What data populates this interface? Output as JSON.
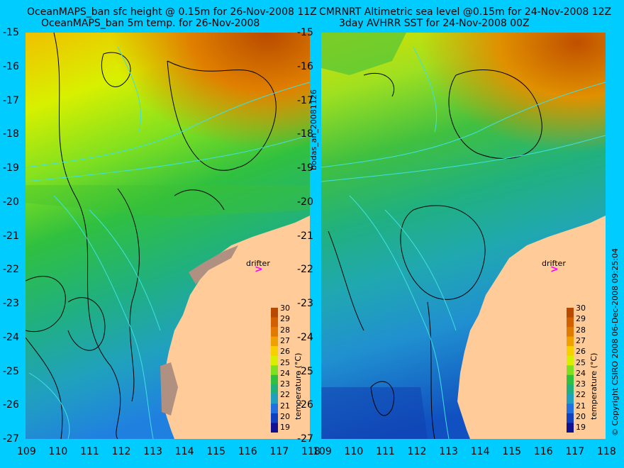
{
  "left_panel": {
    "title_line1": "OceanMAPS_ban sfc height @ 0.15m for 26-Nov-2008 11Z",
    "title_line2": "OceanMAPS_ban 5m temp. for 26-Nov-2008",
    "drifter_label": "drifter",
    "drifter_marker": ">"
  },
  "right_panel": {
    "title_line1": "CMRNRT Altimetric sea level  @0.15m  for 24-Nov-2008 12Z",
    "title_line2": "3day AVHRR SST for 24-Nov-2008 00Z",
    "drifter_label": "drifter",
    "drifter_marker": ">"
  },
  "side_label": "bodas_an_20081126",
  "copyright": "© Copyright CSIRO 2008   06-Dec-2008 09:25:04",
  "y_ticks": [
    "-15",
    "-16",
    "-17",
    "-18",
    "-19",
    "-20",
    "-21",
    "-22",
    "-23",
    "-24",
    "-25",
    "-26",
    "-27"
  ],
  "x_ticks": [
    "109",
    "110",
    "111",
    "112",
    "113",
    "114",
    "115",
    "116",
    "117",
    "118"
  ],
  "colorbar": {
    "label": "temperature (°C)",
    "ticks": [
      "30",
      "29",
      "28",
      "27",
      "26",
      "25",
      "24",
      "23",
      "22",
      "21",
      "20",
      "19"
    ],
    "colors": [
      "#b84a00",
      "#d06000",
      "#e07a00",
      "#f0a000",
      "#f8d000",
      "#d8f000",
      "#80e020",
      "#30c040",
      "#20b080",
      "#20a0c0",
      "#2070e0",
      "#1040c0",
      "#101090"
    ]
  },
  "colors": {
    "background": "#00ccff",
    "land": "#ffcc99",
    "coast_mud": "#b09080",
    "drifter": "#ff00ff"
  }
}
